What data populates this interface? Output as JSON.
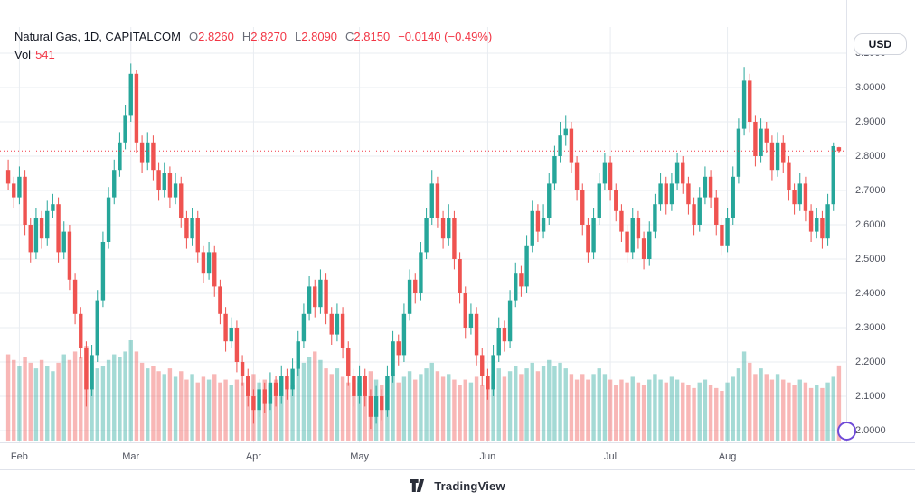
{
  "header": {
    "symbol_title": "Natural Gas, 1D, CAPITALCOM",
    "ohlc": {
      "o_label": "O",
      "o": "2.8260",
      "h_label": "H",
      "h": "2.8270",
      "l_label": "L",
      "l": "2.8090",
      "c_label": "C",
      "c": "2.8150",
      "change": "−0.0140 (−0.49%)"
    },
    "vol_label": "Vol",
    "vol_value": "541",
    "currency_button": "USD"
  },
  "footer": {
    "logo_text": "TradingView"
  },
  "colors": {
    "up": "#26a69a",
    "down": "#ef5350",
    "vol_up": "rgba(38,166,154,0.42)",
    "vol_down": "rgba(239,83,80,0.42)",
    "last_price_line": "#f23645",
    "grid": "#e9ecf1",
    "axis_text": "#51545f"
  },
  "chart_data": {
    "type": "candlestick",
    "title": "Natural Gas, 1D, CAPITALCOM",
    "currency": "USD",
    "interval": "1D",
    "grid": true,
    "price_range": [
      2.0,
      3.1
    ],
    "last_price": 2.815,
    "columns": [
      "open",
      "high",
      "low",
      "close",
      "volume"
    ],
    "price_ticks": [
      {
        "label": "3.1000",
        "price": 3.1
      },
      {
        "label": "3.0000",
        "price": 3.0
      },
      {
        "label": "2.9000",
        "price": 2.9
      },
      {
        "label": "2.8000",
        "price": 2.8
      },
      {
        "label": "2.7000",
        "price": 2.7
      },
      {
        "label": "2.6000",
        "price": 2.6
      },
      {
        "label": "2.5000",
        "price": 2.5
      },
      {
        "label": "2.4000",
        "price": 2.4
      },
      {
        "label": "2.3000",
        "price": 2.3
      },
      {
        "label": "2.2000",
        "price": 2.2
      },
      {
        "label": "2.1000",
        "price": 2.1
      },
      {
        "label": "2.0000",
        "price": 2.0
      }
    ],
    "time_ticks": [
      {
        "label": "Feb",
        "index": 2
      },
      {
        "label": "Mar",
        "index": 22
      },
      {
        "label": "Apr",
        "index": 44
      },
      {
        "label": "May",
        "index": 63
      },
      {
        "label": "Jun",
        "index": 86
      },
      {
        "label": "Jul",
        "index": 108
      },
      {
        "label": "Aug",
        "index": 129
      }
    ],
    "candles": [
      [
        2.76,
        2.79,
        2.7,
        2.72,
        620
      ],
      [
        2.72,
        2.74,
        2.65,
        2.68,
        580
      ],
      [
        2.68,
        2.77,
        2.66,
        2.74,
        540
      ],
      [
        2.74,
        2.76,
        2.57,
        2.6,
        600
      ],
      [
        2.6,
        2.62,
        2.49,
        2.52,
        560
      ],
      [
        2.52,
        2.65,
        2.5,
        2.62,
        520
      ],
      [
        2.62,
        2.64,
        2.53,
        2.56,
        580
      ],
      [
        2.56,
        2.67,
        2.54,
        2.64,
        540
      ],
      [
        2.64,
        2.69,
        2.62,
        2.66,
        500
      ],
      [
        2.66,
        2.68,
        2.49,
        2.52,
        560
      ],
      [
        2.52,
        2.61,
        2.5,
        2.58,
        620
      ],
      [
        2.58,
        2.6,
        2.41,
        2.44,
        580
      ],
      [
        2.44,
        2.46,
        2.31,
        2.34,
        640
      ],
      [
        2.34,
        2.36,
        2.21,
        2.24,
        600
      ],
      [
        2.24,
        2.26,
        2.07,
        2.12,
        680
      ],
      [
        2.12,
        2.25,
        2.1,
        2.22,
        560
      ],
      [
        2.22,
        2.41,
        2.2,
        2.38,
        520
      ],
      [
        2.38,
        2.58,
        2.36,
        2.55,
        540
      ],
      [
        2.55,
        2.71,
        2.53,
        2.68,
        580
      ],
      [
        2.68,
        2.79,
        2.66,
        2.76,
        620
      ],
      [
        2.76,
        2.87,
        2.74,
        2.84,
        600
      ],
      [
        2.84,
        2.95,
        2.82,
        2.92,
        640
      ],
      [
        2.92,
        3.07,
        2.9,
        3.04,
        720
      ],
      [
        3.04,
        3.05,
        2.81,
        2.84,
        640
      ],
      [
        2.84,
        2.86,
        2.75,
        2.78,
        560
      ],
      [
        2.78,
        2.87,
        2.76,
        2.84,
        520
      ],
      [
        2.84,
        2.86,
        2.73,
        2.76,
        540
      ],
      [
        2.76,
        2.78,
        2.67,
        2.7,
        500
      ],
      [
        2.7,
        2.78,
        2.68,
        2.75,
        480
      ],
      [
        2.75,
        2.77,
        2.65,
        2.68,
        520
      ],
      [
        2.68,
        2.75,
        2.66,
        2.72,
        460
      ],
      [
        2.72,
        2.74,
        2.59,
        2.62,
        500
      ],
      [
        2.62,
        2.64,
        2.53,
        2.56,
        440
      ],
      [
        2.56,
        2.65,
        2.54,
        2.62,
        480
      ],
      [
        2.62,
        2.64,
        2.49,
        2.52,
        420
      ],
      [
        2.52,
        2.54,
        2.43,
        2.46,
        460
      ],
      [
        2.46,
        2.55,
        2.44,
        2.52,
        440
      ],
      [
        2.52,
        2.54,
        2.39,
        2.42,
        480
      ],
      [
        2.42,
        2.44,
        2.31,
        2.34,
        420
      ],
      [
        2.34,
        2.36,
        2.23,
        2.26,
        440
      ],
      [
        2.26,
        2.33,
        2.24,
        2.3,
        400
      ],
      [
        2.3,
        2.32,
        2.17,
        2.2,
        440
      ],
      [
        2.2,
        2.22,
        2.13,
        2.16,
        420
      ],
      [
        2.16,
        2.18,
        2.07,
        2.1,
        460
      ],
      [
        2.1,
        2.12,
        2.02,
        2.06,
        480
      ],
      [
        2.06,
        2.15,
        2.04,
        2.12,
        420
      ],
      [
        2.12,
        2.14,
        2.05,
        2.08,
        440
      ],
      [
        2.08,
        2.17,
        2.06,
        2.14,
        400
      ],
      [
        2.14,
        2.16,
        2.07,
        2.1,
        440
      ],
      [
        2.1,
        2.19,
        2.08,
        2.16,
        420
      ],
      [
        2.16,
        2.18,
        2.09,
        2.12,
        460
      ],
      [
        2.12,
        2.21,
        2.1,
        2.18,
        400
      ],
      [
        2.18,
        2.29,
        2.16,
        2.26,
        520
      ],
      [
        2.26,
        2.37,
        2.24,
        2.34,
        560
      ],
      [
        2.34,
        2.45,
        2.32,
        2.42,
        600
      ],
      [
        2.42,
        2.44,
        2.33,
        2.36,
        640
      ],
      [
        2.36,
        2.47,
        2.34,
        2.44,
        580
      ],
      [
        2.44,
        2.46,
        2.31,
        2.34,
        520
      ],
      [
        2.34,
        2.36,
        2.25,
        2.28,
        480
      ],
      [
        2.28,
        2.37,
        2.26,
        2.34,
        520
      ],
      [
        2.34,
        2.36,
        2.21,
        2.24,
        460
      ],
      [
        2.24,
        2.26,
        2.13,
        2.16,
        420
      ],
      [
        2.16,
        2.18,
        2.07,
        2.1,
        440
      ],
      [
        2.1,
        2.19,
        2.08,
        2.16,
        420
      ],
      [
        2.16,
        2.18,
        2.07,
        2.1,
        460
      ],
      [
        2.1,
        2.12,
        2.005,
        2.04,
        500
      ],
      [
        2.04,
        2.13,
        2.02,
        2.1,
        440
      ],
      [
        2.1,
        2.12,
        2.03,
        2.06,
        400
      ],
      [
        2.06,
        2.19,
        2.04,
        2.16,
        440
      ],
      [
        2.16,
        2.29,
        2.14,
        2.26,
        480
      ],
      [
        2.26,
        2.28,
        2.19,
        2.22,
        420
      ],
      [
        2.22,
        2.37,
        2.2,
        2.34,
        460
      ],
      [
        2.34,
        2.47,
        2.32,
        2.44,
        500
      ],
      [
        2.44,
        2.46,
        2.37,
        2.4,
        440
      ],
      [
        2.4,
        2.55,
        2.38,
        2.52,
        480
      ],
      [
        2.52,
        2.65,
        2.5,
        2.62,
        520
      ],
      [
        2.62,
        2.76,
        2.6,
        2.72,
        560
      ],
      [
        2.72,
        2.74,
        2.59,
        2.62,
        500
      ],
      [
        2.62,
        2.64,
        2.53,
        2.56,
        460
      ],
      [
        2.56,
        2.66,
        2.54,
        2.62,
        480
      ],
      [
        2.62,
        2.64,
        2.47,
        2.5,
        440
      ],
      [
        2.5,
        2.52,
        2.37,
        2.4,
        400
      ],
      [
        2.4,
        2.42,
        2.27,
        2.3,
        440
      ],
      [
        2.3,
        2.37,
        2.28,
        2.34,
        420
      ],
      [
        2.34,
        2.36,
        2.19,
        2.22,
        460
      ],
      [
        2.22,
        2.24,
        2.13,
        2.16,
        400
      ],
      [
        2.16,
        2.18,
        2.09,
        2.12,
        440
      ],
      [
        2.12,
        2.25,
        2.1,
        2.22,
        480
      ],
      [
        2.22,
        2.33,
        2.2,
        2.3,
        520
      ],
      [
        2.3,
        2.32,
        2.23,
        2.26,
        460
      ],
      [
        2.26,
        2.41,
        2.24,
        2.38,
        500
      ],
      [
        2.38,
        2.49,
        2.36,
        2.46,
        540
      ],
      [
        2.46,
        2.48,
        2.39,
        2.42,
        480
      ],
      [
        2.42,
        2.57,
        2.4,
        2.54,
        520
      ],
      [
        2.54,
        2.67,
        2.52,
        2.64,
        560
      ],
      [
        2.64,
        2.66,
        2.55,
        2.58,
        500
      ],
      [
        2.58,
        2.66,
        2.56,
        2.62,
        540
      ],
      [
        2.62,
        2.75,
        2.6,
        2.72,
        580
      ],
      [
        2.72,
        2.83,
        2.7,
        2.8,
        540
      ],
      [
        2.8,
        2.9,
        2.78,
        2.86,
        560
      ],
      [
        2.86,
        2.92,
        2.83,
        2.88,
        520
      ],
      [
        2.88,
        2.9,
        2.75,
        2.78,
        480
      ],
      [
        2.78,
        2.8,
        2.67,
        2.7,
        440
      ],
      [
        2.7,
        2.72,
        2.57,
        2.6,
        480
      ],
      [
        2.6,
        2.62,
        2.49,
        2.52,
        440
      ],
      [
        2.52,
        2.65,
        2.5,
        2.62,
        480
      ],
      [
        2.62,
        2.75,
        2.6,
        2.72,
        520
      ],
      [
        2.72,
        2.81,
        2.7,
        2.78,
        480
      ],
      [
        2.78,
        2.8,
        2.67,
        2.7,
        440
      ],
      [
        2.7,
        2.72,
        2.61,
        2.64,
        400
      ],
      [
        2.64,
        2.66,
        2.55,
        2.58,
        440
      ],
      [
        2.58,
        2.6,
        2.49,
        2.52,
        420
      ],
      [
        2.52,
        2.65,
        2.5,
        2.62,
        460
      ],
      [
        2.62,
        2.64,
        2.53,
        2.56,
        420
      ],
      [
        2.56,
        2.58,
        2.47,
        2.5,
        400
      ],
      [
        2.5,
        2.61,
        2.48,
        2.58,
        440
      ],
      [
        2.58,
        2.69,
        2.56,
        2.66,
        480
      ],
      [
        2.66,
        2.75,
        2.64,
        2.72,
        440
      ],
      [
        2.72,
        2.74,
        2.63,
        2.66,
        420
      ],
      [
        2.66,
        2.75,
        2.64,
        2.72,
        460
      ],
      [
        2.72,
        2.81,
        2.7,
        2.78,
        440
      ],
      [
        2.78,
        2.8,
        2.69,
        2.72,
        420
      ],
      [
        2.72,
        2.74,
        2.63,
        2.66,
        400
      ],
      [
        2.66,
        2.68,
        2.57,
        2.6,
        380
      ],
      [
        2.6,
        2.71,
        2.58,
        2.68,
        420
      ],
      [
        2.68,
        2.77,
        2.66,
        2.74,
        440
      ],
      [
        2.74,
        2.76,
        2.65,
        2.68,
        400
      ],
      [
        2.68,
        2.7,
        2.57,
        2.6,
        380
      ],
      [
        2.6,
        2.62,
        2.51,
        2.54,
        360
      ],
      [
        2.54,
        2.65,
        2.52,
        2.62,
        420
      ],
      [
        2.62,
        2.77,
        2.6,
        2.74,
        460
      ],
      [
        2.74,
        2.91,
        2.72,
        2.88,
        520
      ],
      [
        2.88,
        3.06,
        2.86,
        3.02,
        640
      ],
      [
        3.02,
        3.04,
        2.87,
        2.9,
        560
      ],
      [
        2.9,
        2.92,
        2.77,
        2.8,
        480
      ],
      [
        2.8,
        2.91,
        2.78,
        2.88,
        520
      ],
      [
        2.88,
        2.9,
        2.81,
        2.84,
        480
      ],
      [
        2.84,
        2.86,
        2.73,
        2.76,
        440
      ],
      [
        2.76,
        2.87,
        2.74,
        2.84,
        480
      ],
      [
        2.84,
        2.86,
        2.75,
        2.78,
        440
      ],
      [
        2.78,
        2.8,
        2.67,
        2.7,
        420
      ],
      [
        2.7,
        2.72,
        2.63,
        2.66,
        400
      ],
      [
        2.66,
        2.75,
        2.64,
        2.72,
        440
      ],
      [
        2.72,
        2.74,
        2.61,
        2.64,
        420
      ],
      [
        2.64,
        2.66,
        2.55,
        2.58,
        380
      ],
      [
        2.58,
        2.65,
        2.56,
        2.62,
        400
      ],
      [
        2.62,
        2.64,
        2.53,
        2.56,
        380
      ],
      [
        2.56,
        2.69,
        2.54,
        2.66,
        420
      ],
      [
        2.66,
        2.84,
        2.64,
        2.829,
        460
      ],
      [
        2.826,
        2.827,
        2.809,
        2.815,
        541
      ]
    ]
  }
}
